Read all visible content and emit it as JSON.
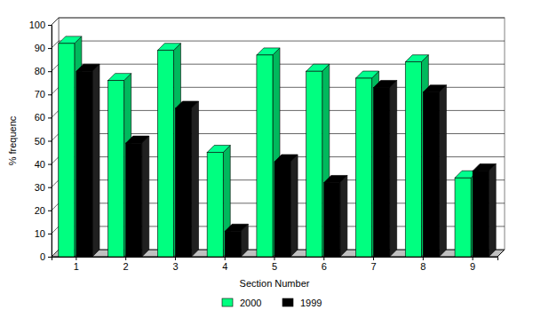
{
  "chart_data": {
    "type": "bar",
    "x_label": "Section Number",
    "y_label": "% frequenc",
    "categories": [
      "1",
      "2",
      "3",
      "4",
      "5",
      "6",
      "7",
      "8",
      "9"
    ],
    "series": [
      {
        "name": "2000",
        "color": "#00ff80",
        "values": [
          92,
          76,
          89,
          45,
          87,
          80,
          77,
          84,
          34
        ]
      },
      {
        "name": "1999",
        "color": "#000000",
        "values": [
          80,
          49,
          64,
          11,
          41,
          32,
          73,
          71,
          37
        ]
      }
    ],
    "ylim": [
      0,
      100
    ],
    "yticks": [
      0,
      10,
      20,
      30,
      40,
      50,
      60,
      70,
      80,
      90,
      100
    ],
    "grid": true,
    "legend": "bottom"
  }
}
